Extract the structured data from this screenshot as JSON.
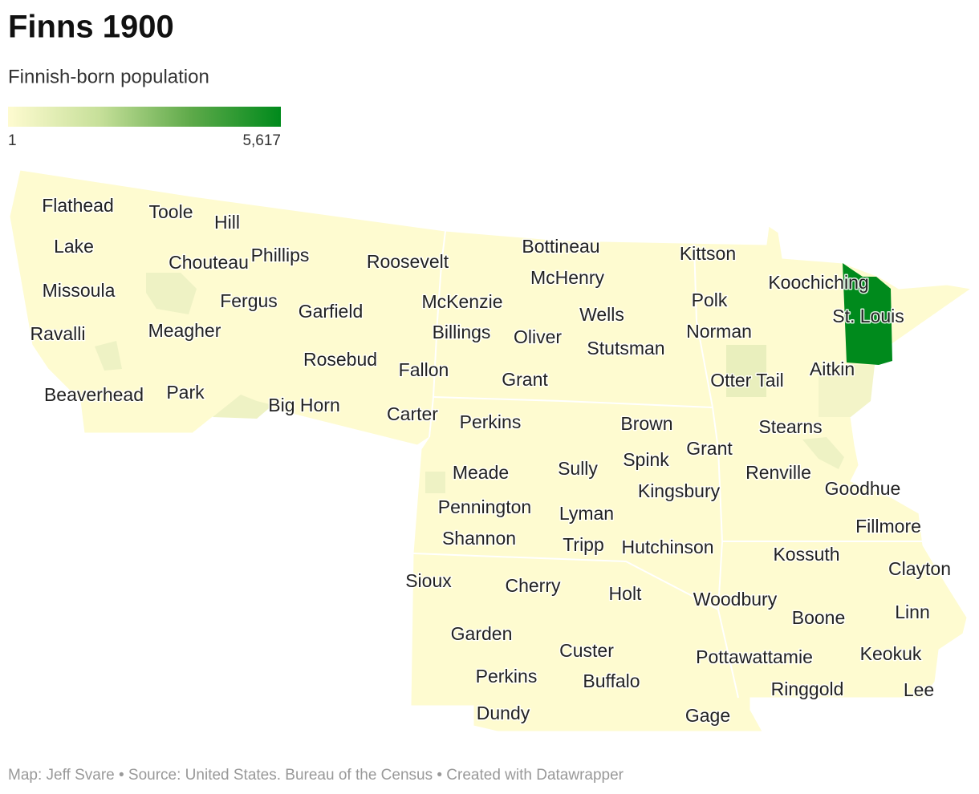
{
  "title": "Finns 1900",
  "subtitle": "Finnish-born population",
  "legend": {
    "min": 1,
    "max": {
      "value": 5617,
      "label": "5,617"
    },
    "colors": [
      "#fefbd0",
      "#c7e09a",
      "#5faa4a",
      "#008a1c"
    ]
  },
  "labels": [
    "Flathead",
    "Toole",
    "Hill",
    "Lake",
    "Chouteau",
    "Phillips",
    "Roosevelt",
    "Bottineau",
    "Kittson",
    "Koochiching",
    "McHenry",
    "Missoula",
    "Fergus",
    "Garfield",
    "McKenzie",
    "Polk",
    "Wells",
    "St. Louis",
    "Ravalli",
    "Meagher",
    "Billings",
    "Oliver",
    "Norman",
    "Stutsman",
    "Rosebud",
    "Fallon",
    "Grant",
    "Aitkin",
    "Otter Tail",
    "Beaverhead",
    "Park",
    "Big Horn",
    "Carter",
    "Perkins",
    "Brown",
    "Stearns",
    "Grant",
    "Spink",
    "Meade",
    "Sully",
    "Renville",
    "Goodhue",
    "Kingsbury",
    "Pennington",
    "Lyman",
    "Fillmore",
    "Shannon",
    "Tripp",
    "Hutchinson",
    "Kossuth",
    "Clayton",
    "Sioux",
    "Cherry",
    "Holt",
    "Woodbury",
    "Boone",
    "Linn",
    "Garden",
    "Custer",
    "Pottawattamie",
    "Keokuk",
    "Perkins",
    "Buffalo",
    "Ringgold",
    "Lee",
    "Dundy",
    "Gage"
  ],
  "footer": "Map: Jeff Svare • Source: United States. Bureau of the Census • Created with Datawrapper"
}
